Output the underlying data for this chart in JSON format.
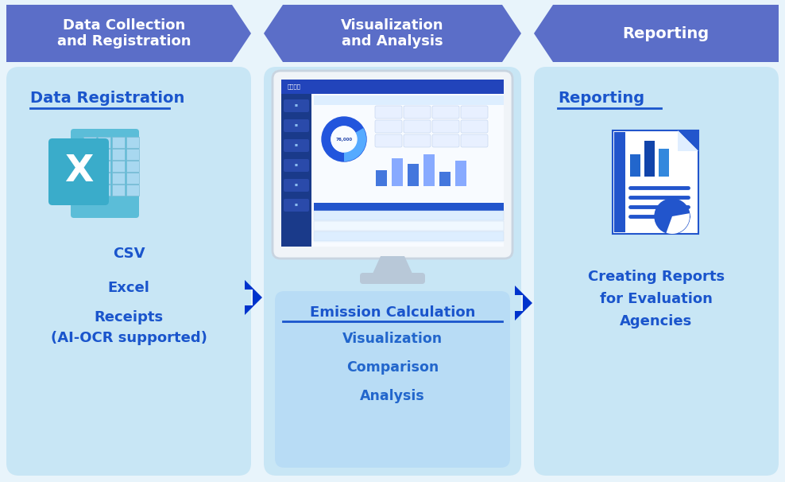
{
  "bg_color": "#e8f4fb",
  "panel_bg": "#c8e6f5",
  "banner_color": "#5b6ec8",
  "dark_blue": "#0033cc",
  "title_blue": "#1a55cc",
  "body_blue": "#2266cc",
  "white": "#ffffff",
  "monitor_border": "#c8d8e8",
  "monitor_screen_bg": "#eef4ff",
  "monitor_header": "#2244aa",
  "monitor_sidebar": "#1a3a88",
  "emit_box_bg": "#b8dcf5",
  "banner_texts": [
    "Data Collection\nand Registration",
    "Visualization\nand Analysis",
    "Reporting"
  ],
  "panel1_title": "Data Registration",
  "panel1_items": [
    "CSV",
    "Excel",
    "Receipts\n(AI-OCR supported)"
  ],
  "panel2_title": "Emission Calculation",
  "panel2_items": [
    "Visualization",
    "Comparison",
    "Analysis"
  ],
  "panel3_title": "Reporting",
  "panel3_text": "Creating Reports\nfor Evaluation\nAgencies",
  "fig_width": 9.88,
  "fig_height": 6.06,
  "dpi": 100
}
